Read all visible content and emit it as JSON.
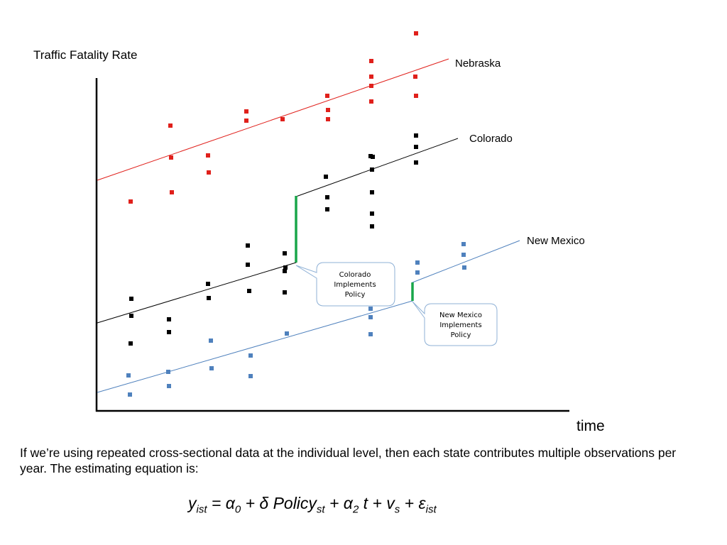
{
  "axes": {
    "y_label": "Traffic Fatality Rate",
    "x_label": "time"
  },
  "series": {
    "nebraska": {
      "name": "Nebraska",
      "color": "#e0201b"
    },
    "colorado": {
      "name": "Colorado",
      "color": "#000000"
    },
    "new_mexico": {
      "name": "New Mexico",
      "color": "#4f81bd"
    }
  },
  "policy_jump_color": "#19a64a",
  "callouts": {
    "colorado": {
      "lines": [
        "Colorado",
        "Implements",
        "Policy"
      ]
    },
    "new_mexico": {
      "lines": [
        "New Mexico",
        "Implements",
        "Policy"
      ]
    }
  },
  "caption": "If we’re using repeated cross-sectional data at the individual level, then each state contributes multiple observations per year. The estimating equation is:",
  "equation": {
    "y": "y",
    "y_sub": "ist",
    "eq": " = α",
    "a0_sub": "0",
    "plus_delta": " + δ Policy",
    "policy_sub": "st",
    "plus_a2": " + α",
    "a2_sub": "2",
    "t_plus_v": " t + v",
    "v_sub": "s",
    "plus_eps": " + ε",
    "eps_sub": "ist"
  }
}
